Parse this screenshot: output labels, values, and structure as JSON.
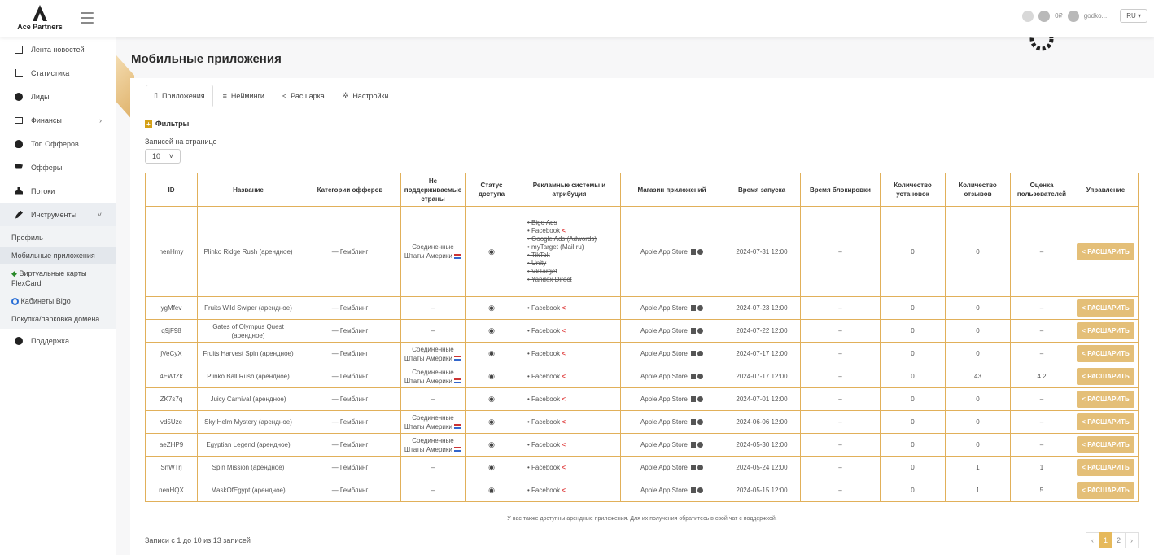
{
  "brand": {
    "name": "Ace Partners"
  },
  "header": {
    "username": "godko...",
    "lang": "RU",
    "badge": "0₽"
  },
  "sidebar": {
    "items": [
      {
        "label": "Лента новостей",
        "icon": "newspaper-icon"
      },
      {
        "label": "Статистика",
        "icon": "chart-icon"
      },
      {
        "label": "Лиды",
        "icon": "check-circle-icon"
      },
      {
        "label": "Финансы",
        "icon": "money-icon"
      },
      {
        "label": "Топ Офферов",
        "icon": "fire-icon"
      },
      {
        "label": "Офферы",
        "icon": "cart-icon"
      },
      {
        "label": "Потоки",
        "icon": "flow-icon"
      },
      {
        "label": "Инструменты",
        "icon": "wrench-icon"
      }
    ],
    "sub": [
      {
        "label": "Профиль"
      },
      {
        "label": "Мобильные приложения"
      },
      {
        "label": "Виртуальные карты FlexCard"
      },
      {
        "label": "Кабинеты Bigo"
      },
      {
        "label": "Покупка/парковка домена"
      }
    ],
    "support": "Поддержка"
  },
  "page": {
    "title": "Мобильные приложения"
  },
  "tabs": [
    {
      "label": "Приложения"
    },
    {
      "label": "Нейминги"
    },
    {
      "label": "Расшарка"
    },
    {
      "label": "Настройки"
    }
  ],
  "filters": {
    "label": "Фильтры",
    "per_page_label": "Записей на странице",
    "per_page": "10"
  },
  "table": {
    "headers": [
      "ID",
      "Название",
      "Категории офферов",
      "Не поддерживаемые страны",
      "Статус доступа",
      "Рекламные системы и атрибуция",
      "Магазин приложений",
      "Время запуска",
      "Время блокировки",
      "Количество установок",
      "Количество отзывов",
      "Оценка пользователей",
      "Управление"
    ],
    "first_ads": [
      "Bigo Ads",
      "Facebook",
      "Google Ads (Adwords)",
      "myTarget (Mail.ru)",
      "TikTok",
      "Unity",
      "VkTarget",
      "Yandex Direct"
    ],
    "rows": [
      {
        "id": "nenHmy",
        "name": "Plinko Ridge Rush (арендное)",
        "cat": "— Гемблинг",
        "countries": "Соединенные Штаты Америки",
        "store": "Apple App Store",
        "launch": "2024-07-31 12:00",
        "block": "–",
        "installs": "0",
        "reviews": "0",
        "rating": "–"
      },
      {
        "id": "ygMfev",
        "name": "Fruits Wild Swiper (арендное)",
        "cat": "— Гемблинг",
        "countries": "–",
        "store": "Apple App Store",
        "launch": "2024-07-23 12:00",
        "block": "–",
        "installs": "0",
        "reviews": "0",
        "rating": "–"
      },
      {
        "id": "q9jF98",
        "name": "Gates of Olympus Quest (арендное)",
        "cat": "— Гемблинг",
        "countries": "–",
        "store": "Apple App Store",
        "launch": "2024-07-22 12:00",
        "block": "–",
        "installs": "0",
        "reviews": "0",
        "rating": "–"
      },
      {
        "id": "jVeCyX",
        "name": "Fruits Harvest Spin (арендное)",
        "cat": "— Гемблинг",
        "countries": "Соединенные Штаты Америки",
        "store": "Apple App Store",
        "launch": "2024-07-17 12:00",
        "block": "–",
        "installs": "0",
        "reviews": "0",
        "rating": "–"
      },
      {
        "id": "4EWtZk",
        "name": "Plinko Ball Rush (арендное)",
        "cat": "— Гемблинг",
        "countries": "Соединенные Штаты Америки",
        "store": "Apple App Store",
        "launch": "2024-07-17 12:00",
        "block": "–",
        "installs": "0",
        "reviews": "43",
        "rating": "4.2"
      },
      {
        "id": "ZK7s7q",
        "name": "Juicy Carnival (арендное)",
        "cat": "— Гемблинг",
        "countries": "–",
        "store": "Apple App Store",
        "launch": "2024-07-01 12:00",
        "block": "–",
        "installs": "0",
        "reviews": "0",
        "rating": "–"
      },
      {
        "id": "vd5Uze",
        "name": "Sky Helm Mystery (арендное)",
        "cat": "— Гемблинг",
        "countries": "Соединенные Штаты Америки",
        "store": "Apple App Store",
        "launch": "2024-06-06 12:00",
        "block": "–",
        "installs": "0",
        "reviews": "0",
        "rating": "–"
      },
      {
        "id": "aeZHP9",
        "name": "Egyptian Legend (арендное)",
        "cat": "— Гемблинг",
        "countries": "Соединенные Штаты Америки",
        "store": "Apple App Store",
        "launch": "2024-05-30 12:00",
        "block": "–",
        "installs": "0",
        "reviews": "0",
        "rating": "–"
      },
      {
        "id": "SnWTrj",
        "name": "Spin Mission (арендное)",
        "cat": "— Гемблинг",
        "countries": "–",
        "store": "Apple App Store",
        "launch": "2024-05-24 12:00",
        "block": "–",
        "installs": "0",
        "reviews": "1",
        "rating": "1"
      },
      {
        "id": "nenHQX",
        "name": "MaskOfEgypt (арендное)",
        "cat": "— Гемблинг",
        "countries": "–",
        "store": "Apple App Store",
        "launch": "2024-05-15 12:00",
        "block": "–",
        "installs": "0",
        "reviews": "1",
        "rating": "5"
      }
    ],
    "ads_default": "Facebook",
    "share_label": "РАСШАРИТЬ"
  },
  "note": "У нас также доступны арендные приложения. Для их получения обратитесь в свой чат с поддержкой.",
  "summary": "Записи с 1 до 10 из 13 записей",
  "pager": {
    "prev": "‹",
    "pages": [
      "1",
      "2"
    ],
    "next": "›"
  },
  "colors": {
    "accent": "#e1b05a",
    "button": "#e4bf78"
  }
}
